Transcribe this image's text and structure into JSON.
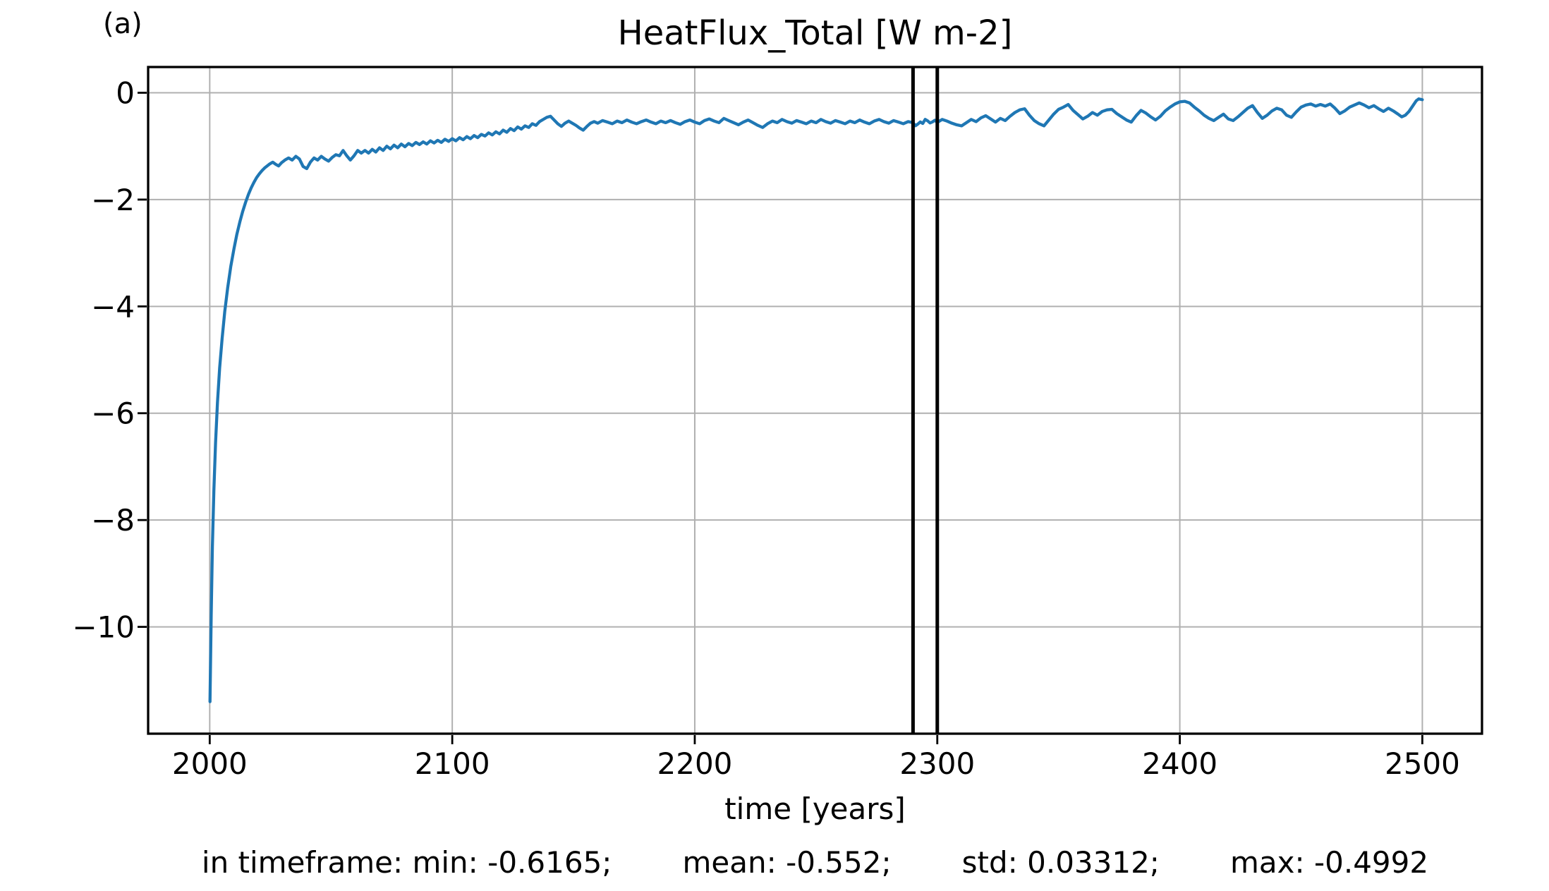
{
  "figure": {
    "panel_label": "(a)",
    "title": "HeatFlux_Total [W m-2]",
    "xlabel": "time [years]",
    "stats": {
      "timeframe_min": "in timeframe: min: -0.6165;",
      "mean": "mean: -0.552;",
      "std": "std: 0.03312;",
      "max": "max: -0.4992"
    }
  },
  "chart_data": {
    "type": "line",
    "title": "HeatFlux_Total [W m-2]",
    "xlabel": "time [years]",
    "ylabel": "",
    "xlim": [
      1974.6,
      2524.6
    ],
    "ylim": [
      -12.0,
      0.482
    ],
    "xticks": [
      2000,
      2100,
      2200,
      2300,
      2400,
      2500
    ],
    "xtick_labels": [
      "2000",
      "2100",
      "2200",
      "2300",
      "2400",
      "2500"
    ],
    "yticks": [
      0,
      -2,
      -4,
      -6,
      -8,
      -10
    ],
    "ytick_labels": [
      "0",
      "−2",
      "−4",
      "−6",
      "−8",
      "−10"
    ],
    "grid": true,
    "grid_color": "#b0b0b0",
    "line_color": "#1f77b4",
    "vline_color": "#000000",
    "timeframe_vlines": [
      2290,
      2300
    ],
    "stats_in_timeframe": {
      "min": -0.6165,
      "mean": -0.552,
      "std": 0.03312,
      "max": -0.4992
    },
    "series": [
      {
        "name": "HeatFlux_Total",
        "x": [
          2000.1,
          2000.6,
          2001.1,
          2001.7,
          2002.4,
          2003.2,
          2004.1,
          2005.1,
          2006.2,
          2007.4,
          2008.7,
          2010,
          2011.2,
          2012.4,
          2013.6,
          2014.8,
          2016,
          2017.1,
          2018.2,
          2019.3,
          2020.4,
          2021.5,
          2022.6,
          2023.7,
          2024.8,
          2026,
          2027.2,
          2028.4,
          2029.6,
          2031,
          2032.5,
          2034,
          2035.5,
          2037,
          2038.5,
          2040,
          2041.5,
          2043,
          2044.5,
          2046,
          2047.5,
          2049,
          2050.5,
          2052,
          2053.5,
          2055,
          2056.5,
          2058,
          2059.5,
          2061,
          2062.5,
          2064,
          2065.5,
          2067,
          2068.5,
          2070,
          2071.5,
          2073,
          2074.5,
          2076,
          2077.5,
          2079,
          2080.5,
          2082,
          2083.5,
          2085,
          2086.5,
          2088,
          2089.5,
          2091,
          2092.5,
          2094,
          2095.5,
          2097,
          2098.5,
          2100,
          2101.5,
          2103,
          2104.5,
          2106,
          2107.5,
          2109,
          2110.5,
          2112,
          2113.5,
          2115,
          2116.5,
          2118,
          2119.5,
          2121,
          2122.5,
          2124,
          2125.5,
          2127,
          2128.5,
          2130,
          2131.5,
          2133,
          2134.5,
          2136,
          2137.5,
          2139,
          2140.5,
          2142,
          2143.5,
          2145,
          2146.5,
          2148,
          2149.5,
          2151,
          2152.5,
          2154,
          2155.5,
          2157,
          2158.5,
          2160,
          2162,
          2164,
          2166,
          2168,
          2170,
          2172,
          2174,
          2176,
          2178,
          2180,
          2182,
          2184,
          2186,
          2188,
          2190,
          2192,
          2194,
          2196,
          2198,
          2200,
          2202,
          2204,
          2206,
          2208,
          2210,
          2212,
          2214,
          2216,
          2218,
          2220,
          2222,
          2224,
          2226,
          2228,
          2230,
          2232,
          2234,
          2236,
          2238,
          2240,
          2242,
          2244,
          2246,
          2248,
          2250,
          2252,
          2254,
          2256,
          2258,
          2260,
          2262,
          2264,
          2266,
          2268,
          2270,
          2272,
          2274,
          2276,
          2278,
          2280,
          2282,
          2284,
          2286,
          2288,
          2290,
          2291,
          2292,
          2293,
          2294,
          2295,
          2296,
          2297,
          2298,
          2299,
          2300,
          2302,
          2304,
          2306,
          2308,
          2310,
          2312,
          2314,
          2316,
          2318,
          2320,
          2322,
          2324,
          2326,
          2328,
          2330,
          2332,
          2334,
          2336,
          2338,
          2340,
          2342,
          2344,
          2346,
          2348,
          2350,
          2352,
          2354,
          2356,
          2358,
          2360,
          2362,
          2364,
          2366,
          2368,
          2370,
          2372,
          2374,
          2376,
          2378,
          2380,
          2382,
          2384,
          2386,
          2388,
          2390,
          2392,
          2394,
          2396,
          2398,
          2400,
          2402,
          2404,
          2406,
          2408,
          2410,
          2412,
          2414,
          2416,
          2418,
          2420,
          2422,
          2424,
          2426,
          2428,
          2430,
          2432,
          2434,
          2436,
          2438,
          2440,
          2442,
          2444,
          2446,
          2448,
          2450,
          2452,
          2454,
          2456,
          2458,
          2460,
          2462,
          2464,
          2466,
          2468,
          2470,
          2472,
          2474,
          2476,
          2478,
          2480,
          2482,
          2484,
          2486,
          2488,
          2490,
          2491.5,
          2493,
          2494.5,
          2496,
          2497.5,
          2498.5,
          2500
        ],
        "y": [
          -11.4,
          -9.8,
          -8.5,
          -7.45,
          -6.55,
          -5.8,
          -5.15,
          -4.6,
          -4.1,
          -3.65,
          -3.25,
          -2.92,
          -2.65,
          -2.42,
          -2.22,
          -2.05,
          -1.9,
          -1.78,
          -1.68,
          -1.59,
          -1.52,
          -1.46,
          -1.41,
          -1.37,
          -1.33,
          -1.3,
          -1.34,
          -1.37,
          -1.31,
          -1.26,
          -1.22,
          -1.26,
          -1.19,
          -1.24,
          -1.38,
          -1.42,
          -1.3,
          -1.22,
          -1.26,
          -1.19,
          -1.24,
          -1.28,
          -1.21,
          -1.16,
          -1.18,
          -1.08,
          -1.18,
          -1.26,
          -1.18,
          -1.08,
          -1.13,
          -1.08,
          -1.13,
          -1.06,
          -1.11,
          -1.03,
          -1.08,
          -1.0,
          -1.05,
          -0.98,
          -1.03,
          -0.96,
          -1.01,
          -0.95,
          -0.99,
          -0.93,
          -0.97,
          -0.92,
          -0.96,
          -0.9,
          -0.94,
          -0.89,
          -0.93,
          -0.87,
          -0.91,
          -0.86,
          -0.9,
          -0.84,
          -0.88,
          -0.82,
          -0.86,
          -0.8,
          -0.84,
          -0.78,
          -0.81,
          -0.75,
          -0.79,
          -0.73,
          -0.77,
          -0.7,
          -0.74,
          -0.67,
          -0.71,
          -0.64,
          -0.68,
          -0.62,
          -0.65,
          -0.58,
          -0.61,
          -0.54,
          -0.5,
          -0.46,
          -0.44,
          -0.51,
          -0.58,
          -0.63,
          -0.57,
          -0.53,
          -0.57,
          -0.61,
          -0.66,
          -0.7,
          -0.63,
          -0.57,
          -0.54,
          -0.57,
          -0.52,
          -0.55,
          -0.58,
          -0.53,
          -0.56,
          -0.51,
          -0.55,
          -0.58,
          -0.54,
          -0.51,
          -0.55,
          -0.58,
          -0.53,
          -0.56,
          -0.52,
          -0.56,
          -0.59,
          -0.54,
          -0.51,
          -0.55,
          -0.58,
          -0.52,
          -0.49,
          -0.53,
          -0.56,
          -0.48,
          -0.52,
          -0.56,
          -0.6,
          -0.55,
          -0.51,
          -0.56,
          -0.61,
          -0.65,
          -0.58,
          -0.53,
          -0.56,
          -0.5,
          -0.54,
          -0.57,
          -0.52,
          -0.55,
          -0.58,
          -0.53,
          -0.56,
          -0.5,
          -0.54,
          -0.57,
          -0.52,
          -0.55,
          -0.58,
          -0.53,
          -0.56,
          -0.51,
          -0.55,
          -0.58,
          -0.53,
          -0.5,
          -0.54,
          -0.57,
          -0.52,
          -0.55,
          -0.58,
          -0.54,
          -0.56,
          -0.6165,
          -0.585,
          -0.545,
          -0.575,
          -0.4992,
          -0.525,
          -0.565,
          -0.545,
          -0.515,
          -0.555,
          -0.5,
          -0.53,
          -0.57,
          -0.6,
          -0.62,
          -0.56,
          -0.5,
          -0.54,
          -0.47,
          -0.43,
          -0.49,
          -0.55,
          -0.48,
          -0.52,
          -0.44,
          -0.37,
          -0.32,
          -0.3,
          -0.42,
          -0.52,
          -0.58,
          -0.62,
          -0.51,
          -0.4,
          -0.31,
          -0.27,
          -0.22,
          -0.33,
          -0.41,
          -0.49,
          -0.44,
          -0.37,
          -0.42,
          -0.35,
          -0.32,
          -0.31,
          -0.39,
          -0.45,
          -0.51,
          -0.55,
          -0.43,
          -0.33,
          -0.38,
          -0.45,
          -0.51,
          -0.44,
          -0.34,
          -0.27,
          -0.21,
          -0.17,
          -0.16,
          -0.19,
          -0.27,
          -0.34,
          -0.42,
          -0.48,
          -0.52,
          -0.46,
          -0.4,
          -0.49,
          -0.52,
          -0.45,
          -0.37,
          -0.29,
          -0.24,
          -0.37,
          -0.48,
          -0.42,
          -0.34,
          -0.29,
          -0.32,
          -0.42,
          -0.46,
          -0.36,
          -0.27,
          -0.23,
          -0.21,
          -0.25,
          -0.22,
          -0.25,
          -0.21,
          -0.29,
          -0.39,
          -0.34,
          -0.27,
          -0.23,
          -0.19,
          -0.23,
          -0.28,
          -0.24,
          -0.3,
          -0.35,
          -0.29,
          -0.34,
          -0.4,
          -0.45,
          -0.42,
          -0.35,
          -0.25,
          -0.15,
          -0.115,
          -0.13
        ]
      }
    ]
  }
}
